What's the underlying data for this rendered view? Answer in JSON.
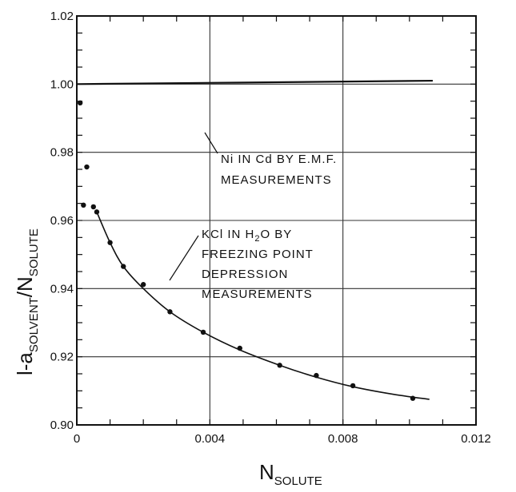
{
  "chart_data": {
    "type": "scatter",
    "title": "",
    "xlabel": "N",
    "xlabel_sub": "SOLUTE",
    "ylabel_parts": {
      "prefix": "l-a",
      "sub1": "SOLVENT",
      "mid": "/N",
      "sub2": "SOLUTE"
    },
    "xlim": [
      0,
      0.012
    ],
    "ylim": [
      0.9,
      1.02
    ],
    "x_ticks": [
      0,
      0.004,
      0.008,
      0.012
    ],
    "x_tick_labels": [
      "0",
      "0.004",
      "0.008",
      "0.012"
    ],
    "y_ticks": [
      0.9,
      0.92,
      0.94,
      0.96,
      0.98,
      1.0,
      1.02
    ],
    "y_tick_labels": [
      "0.90",
      "0.92",
      "0.94",
      "0.96",
      "0.98",
      "1.00",
      "1.02"
    ],
    "grid": true,
    "series": [
      {
        "kind": "line",
        "x": [
          0,
          0.0107
        ],
        "y": [
          1.0,
          1.001
        ]
      },
      {
        "kind": "points",
        "x": [
          0.0001,
          0.0002,
          0.0003,
          0.0005,
          0.0006,
          0.001,
          0.0014,
          0.002,
          0.0028,
          0.0038,
          0.0049,
          0.0061,
          0.0072,
          0.0083,
          0.0101
        ],
        "y": [
          0.9945,
          0.9645,
          0.9757,
          0.964,
          0.9625,
          0.9535,
          0.9465,
          0.9412,
          0.9332,
          0.9272,
          0.9225,
          0.9175,
          0.9145,
          0.9115,
          0.9078
        ]
      },
      {
        "kind": "curve",
        "x": [
          0.0006,
          0.001,
          0.0014,
          0.002,
          0.0028,
          0.0038,
          0.0049,
          0.0061,
          0.0072,
          0.0083,
          0.0095,
          0.0106
        ],
        "y": [
          0.9625,
          0.9535,
          0.9465,
          0.94,
          0.9332,
          0.9272,
          0.922,
          0.9175,
          0.914,
          0.9112,
          0.909,
          0.9075
        ]
      }
    ],
    "annotations": [
      {
        "id": "ni",
        "lines": [
          "Ni  IN  Cd  BY  E.M.F.",
          "MEASUREMENTS"
        ]
      },
      {
        "id": "kcl",
        "lines": [
          "KCl  IN  H2O  BY",
          "FREEZING  POINT",
          "DEPRESSION",
          "MEASUREMENTS"
        ]
      }
    ]
  }
}
